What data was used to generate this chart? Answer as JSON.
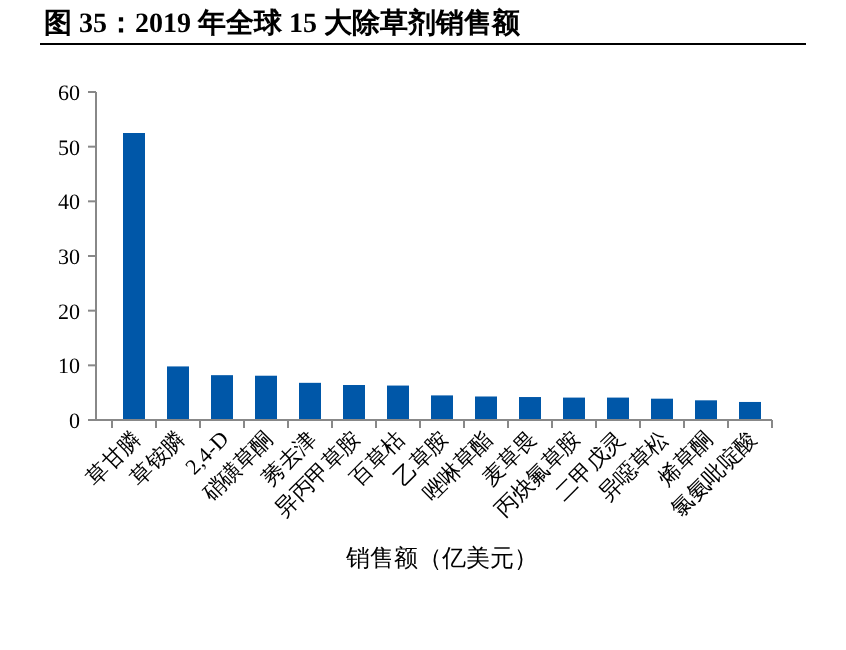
{
  "chart_data": {
    "type": "bar",
    "title": "图 35：2019 年全球 15 大除草剂销售额",
    "xlabel": "销售额（亿美元）",
    "categories": [
      "草甘膦",
      "草铵膦",
      "2,4-D",
      "硝磺草酮",
      "莠去津",
      "异丙甲草胺",
      "百草枯",
      "乙草胺",
      "唑啉草酯",
      "麦草畏",
      "丙炔氟草胺",
      "二甲戊灵",
      "异噁草松",
      "烯草酮",
      "氯氨吡啶酸"
    ],
    "values": [
      52.5,
      9.8,
      8.2,
      8.1,
      6.8,
      6.4,
      6.3,
      4.5,
      4.3,
      4.2,
      4.1,
      4.1,
      3.9,
      3.6,
      3.3
    ],
    "color": "#0057a8",
    "ylim": [
      0,
      60
    ],
    "yticks": [
      0,
      10,
      20,
      30,
      40,
      50,
      60
    ]
  }
}
